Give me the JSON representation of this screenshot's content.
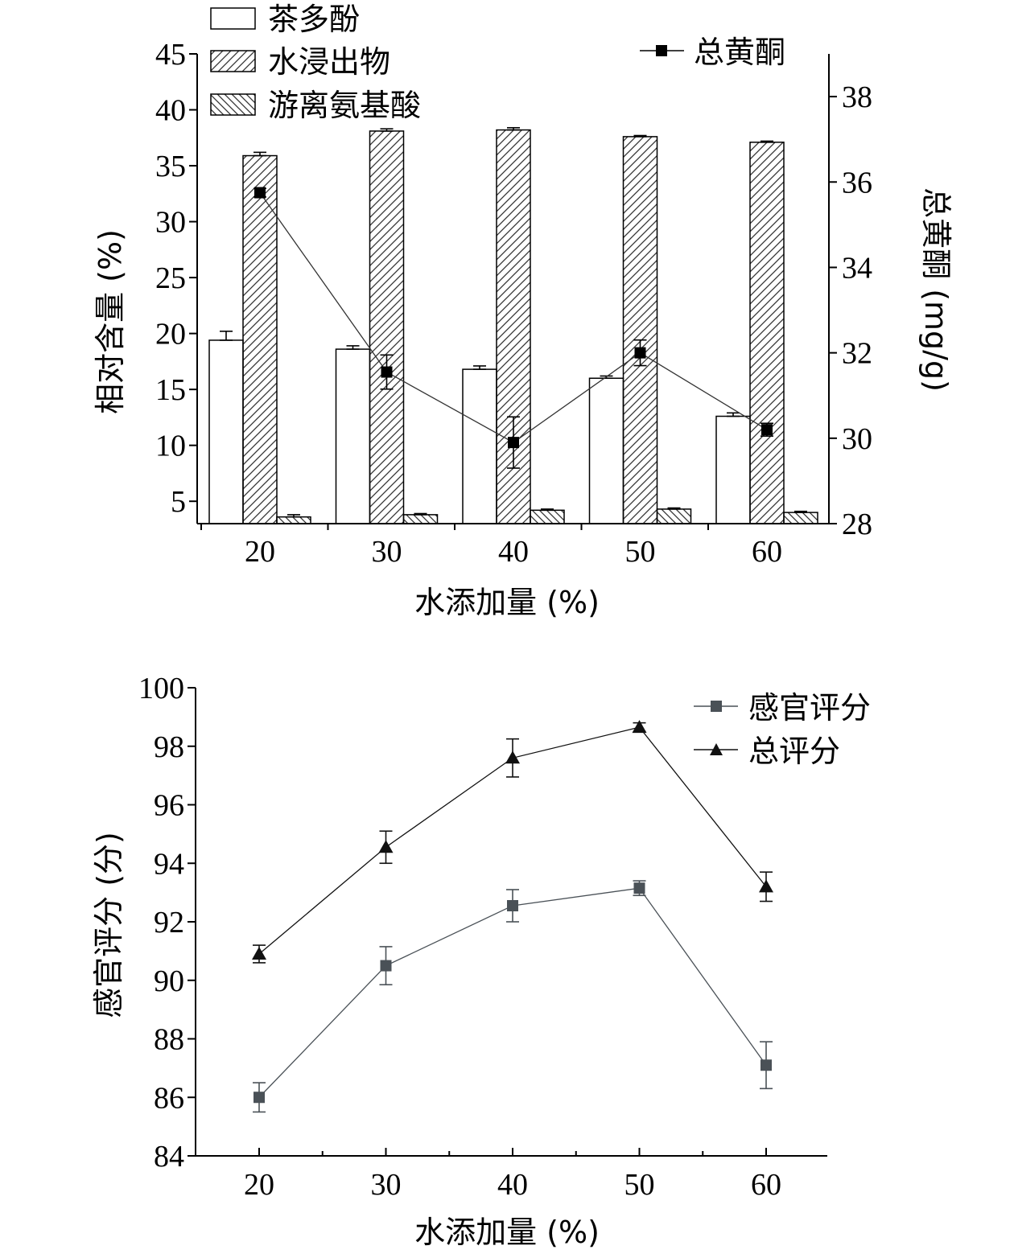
{
  "chart_data": [
    {
      "type": "bar",
      "categories": [
        "20",
        "30",
        "40",
        "50",
        "60"
      ],
      "xlabel": "水添加量 (%)",
      "ylabel": "相对含量 (%)",
      "ylabel_right": "总黄酮 (mg/g)",
      "ylim": [
        3,
        45
      ],
      "yticks": [
        5,
        10,
        15,
        20,
        25,
        30,
        35,
        40,
        45
      ],
      "ylim_right": [
        28,
        39
      ],
      "yticks_right": [
        28,
        30,
        32,
        34,
        36,
        38
      ],
      "series": [
        {
          "name": "茶多酚",
          "pattern": "none",
          "values": [
            19.4,
            18.6,
            16.8,
            16.0,
            12.6
          ],
          "errors": [
            0.8,
            0.3,
            0.3,
            0.2,
            0.3
          ]
        },
        {
          "name": "水浸出物",
          "pattern": "hatch-forward",
          "values": [
            35.9,
            38.1,
            38.2,
            37.6,
            37.1
          ],
          "errors": [
            0.3,
            0.2,
            0.2,
            0.1,
            0.1
          ]
        },
        {
          "name": "游离氨基酸",
          "pattern": "hatch-backward",
          "values": [
            3.6,
            3.8,
            4.2,
            4.3,
            4.0
          ],
          "errors": [
            0.2,
            0.1,
            0.1,
            0.1,
            0.1
          ]
        }
      ],
      "line_series": [
        {
          "name": "总黄酮",
          "axis": "right",
          "marker": "square",
          "values": [
            35.75,
            31.55,
            29.9,
            32.0,
            30.2
          ],
          "errors": [
            0.1,
            0.4,
            0.6,
            0.3,
            0.15
          ]
        }
      ]
    },
    {
      "type": "line",
      "x": [
        "20",
        "30",
        "40",
        "50",
        "60"
      ],
      "xlabel": "水添加量 (%)",
      "ylabel": "感官评分 (分)",
      "ylim": [
        84,
        100
      ],
      "yticks": [
        84,
        86,
        88,
        90,
        92,
        94,
        96,
        98,
        100
      ],
      "series": [
        {
          "name": "感官评分",
          "marker": "square",
          "color": "#4a5157",
          "values": [
            86.0,
            90.5,
            92.55,
            93.15,
            87.1
          ],
          "errors": [
            0.5,
            0.65,
            0.55,
            0.25,
            0.8
          ]
        },
        {
          "name": "总评分",
          "marker": "triangle",
          "color": "#111111",
          "values": [
            90.9,
            94.55,
            97.6,
            98.65,
            93.2
          ],
          "errors": [
            0.3,
            0.55,
            0.65,
            0.15,
            0.5
          ]
        }
      ]
    }
  ]
}
